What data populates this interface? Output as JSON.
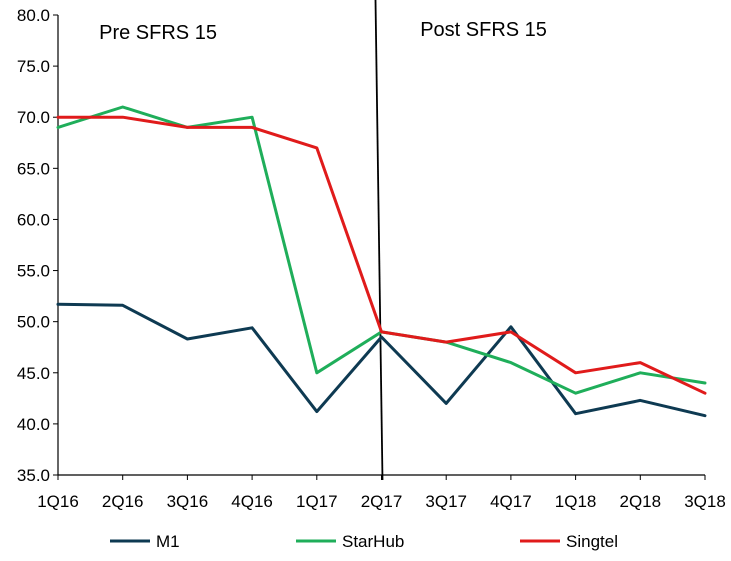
{
  "chart_data": {
    "type": "line",
    "title": "",
    "xlabel": "",
    "ylabel": "",
    "categories": [
      "1Q16",
      "2Q16",
      "3Q16",
      "4Q16",
      "1Q17",
      "2Q17",
      "3Q17",
      "4Q17",
      "1Q18",
      "2Q18",
      "3Q18"
    ],
    "ylim": [
      35.0,
      80.0
    ],
    "yticks": [
      "35.0",
      "40.0",
      "45.0",
      "50.0",
      "55.0",
      "60.0",
      "65.0",
      "70.0",
      "75.0",
      "80.0"
    ],
    "grid": false,
    "legend_position": "bottom",
    "series": [
      {
        "name": "M1",
        "color": "#0e3a52",
        "values": [
          51.7,
          51.6,
          48.3,
          49.4,
          41.2,
          48.5,
          42.0,
          49.5,
          41.0,
          42.3,
          40.8
        ]
      },
      {
        "name": "StarHub",
        "color": "#1fae5a",
        "values": [
          69.0,
          71.0,
          69.0,
          70.0,
          45.0,
          49.0,
          48.0,
          46.0,
          43.0,
          45.0,
          44.0
        ]
      },
      {
        "name": "Singtel",
        "color": "#e01b1b",
        "values": [
          70.0,
          70.0,
          69.0,
          69.0,
          67.0,
          49.0,
          48.0,
          49.0,
          45.0,
          46.0,
          43.0
        ]
      }
    ],
    "annotations": [
      {
        "text": "Pre SFRS 15"
      },
      {
        "text": "Post SFRS 15"
      }
    ],
    "divider": {
      "at_category": "2Q17"
    }
  }
}
